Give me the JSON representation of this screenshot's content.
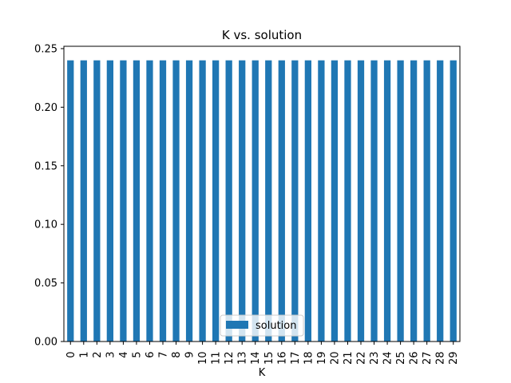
{
  "chart_data": {
    "type": "bar",
    "title": "K vs. solution",
    "xlabel": "K",
    "ylabel": "",
    "categories": [
      "0",
      "1",
      "2",
      "3",
      "4",
      "5",
      "6",
      "7",
      "8",
      "9",
      "10",
      "11",
      "12",
      "13",
      "14",
      "15",
      "16",
      "17",
      "18",
      "19",
      "20",
      "21",
      "22",
      "23",
      "24",
      "25",
      "26",
      "27",
      "28",
      "29"
    ],
    "series": [
      {
        "name": "solution",
        "color": "#1f77b4",
        "values": [
          0.24,
          0.24,
          0.24,
          0.24,
          0.24,
          0.24,
          0.24,
          0.24,
          0.24,
          0.24,
          0.24,
          0.24,
          0.24,
          0.24,
          0.24,
          0.24,
          0.24,
          0.24,
          0.24,
          0.24,
          0.24,
          0.24,
          0.24,
          0.24,
          0.24,
          0.24,
          0.24,
          0.24,
          0.24,
          0.24
        ]
      }
    ],
    "ylim": [
      0,
      0.252
    ],
    "yticks": [
      "0.00",
      "0.05",
      "0.10",
      "0.15",
      "0.20",
      "0.25"
    ],
    "grid": false,
    "legend_position": "bottom-center"
  }
}
